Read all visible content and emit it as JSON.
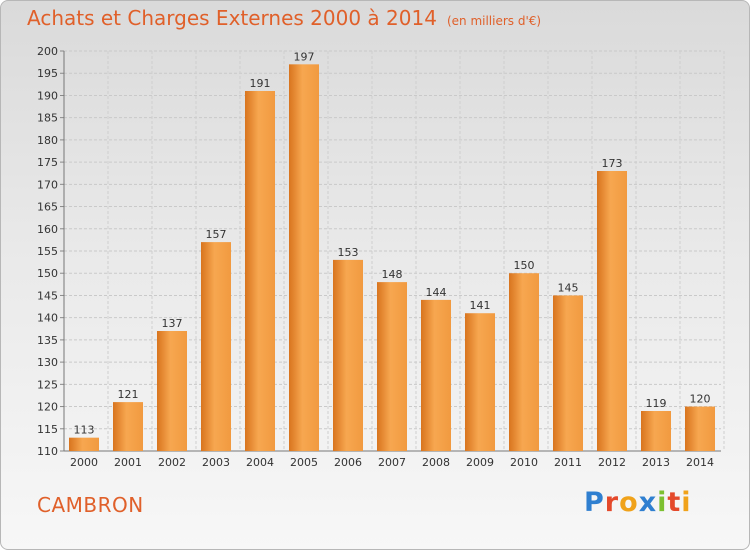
{
  "title": "Achats et Charges Externes 2000 à 2014",
  "subtitle": "(en milliers d'€)",
  "city": "CAMBRON",
  "logo": {
    "letters": [
      "P",
      "r",
      "o",
      "x",
      "i",
      "t",
      "i"
    ]
  },
  "colors": {
    "accent": "#e0602a",
    "bar_light": "#f6a850",
    "bar_dark": "#d8741e"
  },
  "chart_data": {
    "type": "bar",
    "categories": [
      "2000",
      "2001",
      "2002",
      "2003",
      "2004",
      "2005",
      "2006",
      "2007",
      "2008",
      "2009",
      "2010",
      "2011",
      "2012",
      "2013",
      "2014"
    ],
    "values": [
      113,
      121,
      137,
      157,
      191,
      197,
      153,
      148,
      144,
      141,
      150,
      145,
      173,
      119,
      120
    ],
    "data_labels": [
      "113",
      "121",
      "137",
      "157",
      "191",
      "197",
      "153",
      "148",
      "144",
      "141",
      "150",
      "145",
      "173",
      "119",
      "120"
    ],
    "ylim": [
      110,
      200
    ],
    "yticks": [
      "110",
      "115",
      "120",
      "125",
      "130",
      "135",
      "140",
      "145",
      "150",
      "155",
      "160",
      "165",
      "170",
      "175",
      "180",
      "185",
      "190",
      "195",
      "200"
    ],
    "grid": true
  }
}
